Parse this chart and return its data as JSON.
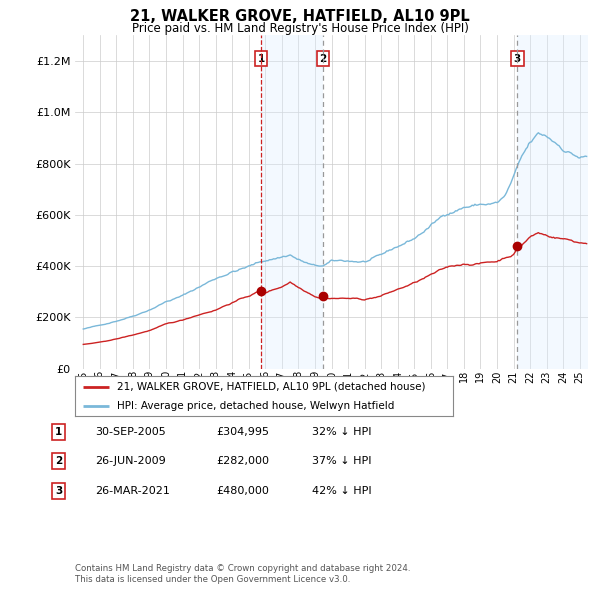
{
  "title": "21, WALKER GROVE, HATFIELD, AL10 9PL",
  "subtitle": "Price paid vs. HM Land Registry's House Price Index (HPI)",
  "legend_line1": "21, WALKER GROVE, HATFIELD, AL10 9PL (detached house)",
  "legend_line2": "HPI: Average price, detached house, Welwyn Hatfield",
  "footnote1": "Contains HM Land Registry data © Crown copyright and database right 2024.",
  "footnote2": "This data is licensed under the Open Government Licence v3.0.",
  "transactions": [
    {
      "num": 1,
      "date": "30-SEP-2005",
      "price": "£304,995",
      "pct": "32% ↓ HPI",
      "year": 2005.75,
      "vline_style": "red_dash"
    },
    {
      "num": 2,
      "date": "26-JUN-2009",
      "price": "£282,000",
      "pct": "37% ↓ HPI",
      "year": 2009.5,
      "vline_style": "grey_dash"
    },
    {
      "num": 3,
      "date": "26-MAR-2021",
      "price": "£480,000",
      "pct": "42% ↓ HPI",
      "year": 2021.23,
      "vline_style": "grey_dash"
    }
  ],
  "ylim": [
    0,
    1300000
  ],
  "xlim_start": 1994.5,
  "xlim_end": 2025.5,
  "hpi_color": "#7ab8d9",
  "price_color": "#cc2222",
  "vline_red_color": "#cc2222",
  "vline_grey_color": "#999999",
  "shade_color": "#ddeeff",
  "background_plot": "#ffffff",
  "background_fig": "#ffffff",
  "grid_color": "#cccccc",
  "dot_color": "#aa0000"
}
